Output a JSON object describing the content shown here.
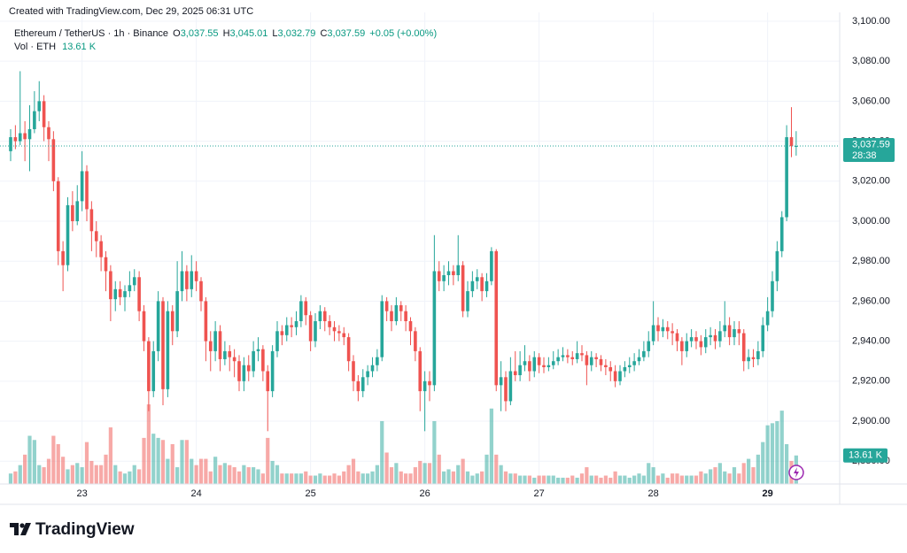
{
  "caption": "Created with TradingView.com, Dec 29, 2025 06:31 UTC",
  "legend": {
    "symbol": "Ethereum / TetherUS · 1h · Binance",
    "fields": [
      {
        "key": "O",
        "value": "3,037.55"
      },
      {
        "key": "H",
        "value": "3,045.01"
      },
      {
        "key": "L",
        "value": "3,032.79"
      },
      {
        "key": "C",
        "value": "3,037.59"
      }
    ],
    "change": "+0.05 (+0.00%)",
    "volume_name": "Vol · ETH",
    "volume_value": "13.61 K"
  },
  "price_tag": {
    "price": "3,037.59",
    "countdown": "28:38"
  },
  "volume_tag": "13.61 K",
  "branding": "TradingView",
  "chart_data": {
    "type": "candlestick",
    "up_color": "#26a69a",
    "down_color": "#ef5350",
    "grid": true,
    "ylim": [
      2868.6,
      3104.4
    ],
    "yticks": [
      {
        "value": 2880,
        "label": "2,880.00"
      },
      {
        "value": 2900,
        "label": "2,900.00"
      },
      {
        "value": 2920,
        "label": "2,920.00"
      },
      {
        "value": 2940,
        "label": "2,940.00"
      },
      {
        "value": 2960,
        "label": "2,960.00"
      },
      {
        "value": 2980,
        "label": "2,980.00"
      },
      {
        "value": 3000,
        "label": "3,000.00"
      },
      {
        "value": 3020,
        "label": "3,020.00"
      },
      {
        "value": 3040,
        "label": "3,040.00"
      },
      {
        "value": 3060,
        "label": "3,060.00"
      },
      {
        "value": 3080,
        "label": "3,080.00"
      },
      {
        "value": 3100,
        "label": "3,100.00"
      }
    ],
    "categories": [
      null,
      null,
      null,
      null,
      null,
      null,
      null,
      null,
      null,
      null,
      null,
      null,
      null,
      null,
      null,
      "23",
      null,
      null,
      null,
      null,
      null,
      null,
      null,
      null,
      null,
      null,
      null,
      null,
      null,
      null,
      null,
      null,
      null,
      null,
      null,
      null,
      null,
      null,
      null,
      "24",
      null,
      null,
      null,
      null,
      null,
      null,
      null,
      null,
      null,
      null,
      null,
      null,
      null,
      null,
      null,
      null,
      null,
      null,
      null,
      null,
      null,
      null,
      null,
      "25",
      null,
      null,
      null,
      null,
      null,
      null,
      null,
      null,
      null,
      null,
      null,
      null,
      null,
      null,
      null,
      null,
      null,
      null,
      null,
      null,
      null,
      null,
      null,
      "26",
      null,
      null,
      null,
      null,
      null,
      null,
      null,
      null,
      null,
      null,
      null,
      null,
      null,
      null,
      null,
      null,
      null,
      null,
      null,
      null,
      null,
      null,
      null,
      "27",
      null,
      null,
      null,
      null,
      null,
      null,
      null,
      null,
      null,
      null,
      null,
      null,
      null,
      null,
      null,
      null,
      null,
      null,
      null,
      null,
      null,
      null,
      null,
      "28",
      null,
      null,
      null,
      null,
      null,
      null,
      null,
      null,
      null,
      null,
      null,
      null,
      null,
      null,
      null,
      null,
      null,
      null,
      null,
      null,
      null,
      null,
      null,
      "29",
      null,
      null,
      null,
      null,
      null,
      null
    ],
    "open": [
      3035,
      3042,
      3040,
      3044,
      3041,
      3046,
      3055,
      3060,
      3047,
      3041,
      3020,
      2985,
      2978,
      3008,
      3000,
      3010,
      3025,
      3006,
      2995,
      2990,
      2982,
      2975,
      2961,
      2966,
      2962,
      2965,
      2968,
      2972,
      2955,
      2940,
      2915,
      2935,
      2960,
      2916,
      2955,
      2945,
      2965,
      2975,
      2966,
      2975,
      2970,
      2960,
      2940,
      2935,
      2945,
      2931,
      2935,
      2932,
      2930,
      2920,
      2928,
      2925,
      2935,
      2936,
      2925,
      2915,
      2935,
      2945,
      2943,
      2948,
      2947,
      2950,
      2960,
      2953,
      2940,
      2950,
      2955,
      2950,
      2947,
      2945,
      2944,
      2942,
      2930,
      2920,
      2915,
      2922,
      2925,
      2928,
      2932,
      2960,
      2955,
      2950,
      2958,
      2955,
      2950,
      2945,
      2935,
      2915,
      2920,
      2918,
      2975,
      2970,
      2973,
      2975,
      2973,
      2978,
      2955,
      2965,
      2970,
      2972,
      2965,
      2970,
      2985,
      2918,
      2922,
      2910,
      2925,
      2923,
      2928,
      2930,
      2925,
      2932,
      2928,
      2927,
      2928,
      2930,
      2932,
      2933,
      2932,
      2931,
      2934,
      2933,
      2928,
      2932,
      2931,
      2928,
      2927,
      2925,
      2920,
      2925,
      2927,
      2928,
      2930,
      2932,
      2935,
      2940,
      2948,
      2945,
      2947,
      2945,
      2944,
      2940,
      2935,
      2940,
      2942,
      2940,
      2937,
      2942,
      2943,
      2940,
      2945,
      2948,
      2942,
      2946,
      2944,
      2930,
      2932,
      2931,
      2935,
      2948,
      2955,
      2970,
      2985,
      3002,
      3042,
      3037.55
    ],
    "high": [
      3046,
      3048,
      3075,
      3050,
      3058,
      3065,
      3070,
      3063,
      3050,
      3045,
      3022,
      2990,
      3012,
      3015,
      3018,
      3035,
      3028,
      3010,
      3000,
      2993,
      2985,
      2978,
      2970,
      2970,
      2968,
      2975,
      2976,
      2975,
      2958,
      2942,
      2940,
      2965,
      2962,
      2960,
      2958,
      2980,
      2985,
      2978,
      2983,
      2980,
      2972,
      2962,
      2945,
      2950,
      2948,
      2940,
      2938,
      2936,
      2933,
      2932,
      2933,
      2940,
      2942,
      2938,
      2928,
      2938,
      2950,
      2948,
      2952,
      2952,
      2955,
      2963,
      2962,
      2955,
      2954,
      2958,
      2957,
      2953,
      2950,
      2948,
      2947,
      2944,
      2933,
      2923,
      2926,
      2928,
      2932,
      2936,
      2963,
      2962,
      2958,
      2962,
      2960,
      2958,
      2952,
      2947,
      2937,
      2925,
      2925,
      2993,
      2980,
      2978,
      2980,
      2978,
      2993,
      2980,
      2970,
      2975,
      2976,
      2974,
      2974,
      2987,
      2986,
      2930,
      2925,
      2932,
      2935,
      2935,
      2938,
      2933,
      2935,
      2934,
      2932,
      2932,
      2935,
      2936,
      2937,
      2936,
      2935,
      2940,
      2938,
      2935,
      2935,
      2934,
      2933,
      2931,
      2930,
      2928,
      2928,
      2930,
      2932,
      2934,
      2936,
      2940,
      2945,
      2960,
      2952,
      2951,
      2950,
      2949,
      2946,
      2942,
      2944,
      2946,
      2945,
      2943,
      2946,
      2947,
      2946,
      2950,
      2960,
      2952,
      2950,
      2950,
      2946,
      2936,
      2936,
      2940,
      2952,
      2962,
      2975,
      2990,
      3005,
      3048,
      3057,
      3045.01
    ],
    "low": [
      3030,
      3036,
      3038,
      3030,
      3025,
      3044,
      3050,
      3040,
      3030,
      3015,
      2978,
      2965,
      2975,
      2995,
      2998,
      3005,
      3000,
      2985,
      2982,
      2975,
      2965,
      2950,
      2955,
      2958,
      2955,
      2962,
      2965,
      2950,
      2935,
      2905,
      2912,
      2930,
      2908,
      2912,
      2938,
      2942,
      2960,
      2960,
      2962,
      2965,
      2955,
      2930,
      2925,
      2930,
      2925,
      2928,
      2925,
      2922,
      2915,
      2915,
      2920,
      2922,
      2930,
      2920,
      2895,
      2912,
      2932,
      2938,
      2940,
      2942,
      2943,
      2947,
      2948,
      2935,
      2937,
      2946,
      2945,
      2943,
      2940,
      2940,
      2938,
      2925,
      2915,
      2910,
      2912,
      2918,
      2922,
      2925,
      2930,
      2950,
      2945,
      2948,
      2950,
      2945,
      2938,
      2930,
      2905,
      2895,
      2910,
      2915,
      2965,
      2965,
      2968,
      2968,
      2970,
      2952,
      2952,
      2962,
      2966,
      2960,
      2962,
      2968,
      2915,
      2905,
      2905,
      2908,
      2920,
      2920,
      2925,
      2920,
      2922,
      2924,
      2924,
      2925,
      2926,
      2928,
      2930,
      2929,
      2928,
      2929,
      2930,
      2918,
      2925,
      2927,
      2925,
      2923,
      2920,
      2917,
      2918,
      2922,
      2924,
      2925,
      2928,
      2930,
      2932,
      2938,
      2940,
      2942,
      2941,
      2938,
      2935,
      2928,
      2932,
      2937,
      2936,
      2933,
      2934,
      2938,
      2936,
      2937,
      2942,
      2938,
      2938,
      2938,
      2925,
      2926,
      2927,
      2928,
      2932,
      2945,
      2952,
      2965,
      2982,
      3000,
      3032,
      3032.79
    ],
    "close": [
      3042,
      3040,
      3044,
      3041,
      3046,
      3055,
      3060,
      3047,
      3041,
      3020,
      2985,
      2978,
      3008,
      3000,
      3010,
      3025,
      3006,
      2995,
      2990,
      2982,
      2975,
      2961,
      2966,
      2962,
      2965,
      2968,
      2972,
      2955,
      2940,
      2915,
      2935,
      2960,
      2916,
      2955,
      2945,
      2965,
      2975,
      2966,
      2975,
      2970,
      2960,
      2940,
      2935,
      2945,
      2931,
      2935,
      2932,
      2930,
      2920,
      2928,
      2925,
      2935,
      2936,
      2925,
      2915,
      2935,
      2945,
      2943,
      2948,
      2947,
      2950,
      2960,
      2953,
      2940,
      2950,
      2955,
      2950,
      2947,
      2945,
      2944,
      2942,
      2930,
      2920,
      2915,
      2922,
      2925,
      2928,
      2932,
      2960,
      2955,
      2950,
      2958,
      2955,
      2950,
      2945,
      2935,
      2915,
      2920,
      2918,
      2975,
      2970,
      2973,
      2975,
      2973,
      2978,
      2955,
      2965,
      2970,
      2972,
      2965,
      2970,
      2985,
      2918,
      2922,
      2910,
      2925,
      2923,
      2928,
      2930,
      2925,
      2932,
      2928,
      2927,
      2928,
      2930,
      2932,
      2933,
      2932,
      2931,
      2934,
      2933,
      2928,
      2932,
      2931,
      2928,
      2927,
      2925,
      2920,
      2925,
      2927,
      2928,
      2930,
      2932,
      2935,
      2940,
      2948,
      2945,
      2947,
      2945,
      2944,
      2940,
      2935,
      2940,
      2942,
      2940,
      2937,
      2942,
      2943,
      2940,
      2945,
      2948,
      2942,
      2946,
      2944,
      2930,
      2932,
      2931,
      2935,
      2948,
      2955,
      2970,
      2985,
      3002,
      3042,
      3037.55,
      3037.59
    ],
    "volume": [
      5,
      6,
      9,
      14,
      23,
      21,
      9,
      8,
      12,
      23,
      19,
      13,
      7,
      9,
      10,
      8,
      20,
      11,
      9,
      9,
      14,
      27,
      9,
      6,
      5,
      6,
      9,
      7,
      22,
      38,
      24,
      22,
      21,
      12,
      19,
      8,
      21,
      21,
      12,
      9,
      12,
      12,
      6,
      13,
      9,
      10,
      9,
      8,
      6,
      9,
      8,
      8,
      7,
      5,
      22,
      11,
      9,
      5,
      5,
      5,
      5,
      5,
      6,
      4,
      4,
      5,
      4,
      4,
      5,
      4,
      6,
      9,
      12,
      6,
      5,
      5,
      6,
      9,
      30,
      15,
      8,
      10,
      6,
      5,
      5,
      8,
      11,
      10,
      10,
      30,
      14,
      6,
      7,
      6,
      9,
      12,
      6,
      4,
      5,
      6,
      14,
      36,
      14,
      9,
      6,
      5,
      5,
      4,
      4,
      4,
      3,
      4,
      4,
      4,
      4,
      3,
      3,
      3,
      4,
      3,
      5,
      8,
      4,
      4,
      3,
      4,
      3,
      6,
      4,
      4,
      3,
      4,
      5,
      4,
      10,
      8,
      4,
      5,
      3,
      5,
      5,
      4,
      4,
      4,
      4,
      6,
      5,
      7,
      8,
      10,
      6,
      5,
      8,
      5,
      10,
      12,
      8,
      14,
      20,
      28,
      29,
      30,
      35,
      19,
      11,
      13.61
    ]
  }
}
